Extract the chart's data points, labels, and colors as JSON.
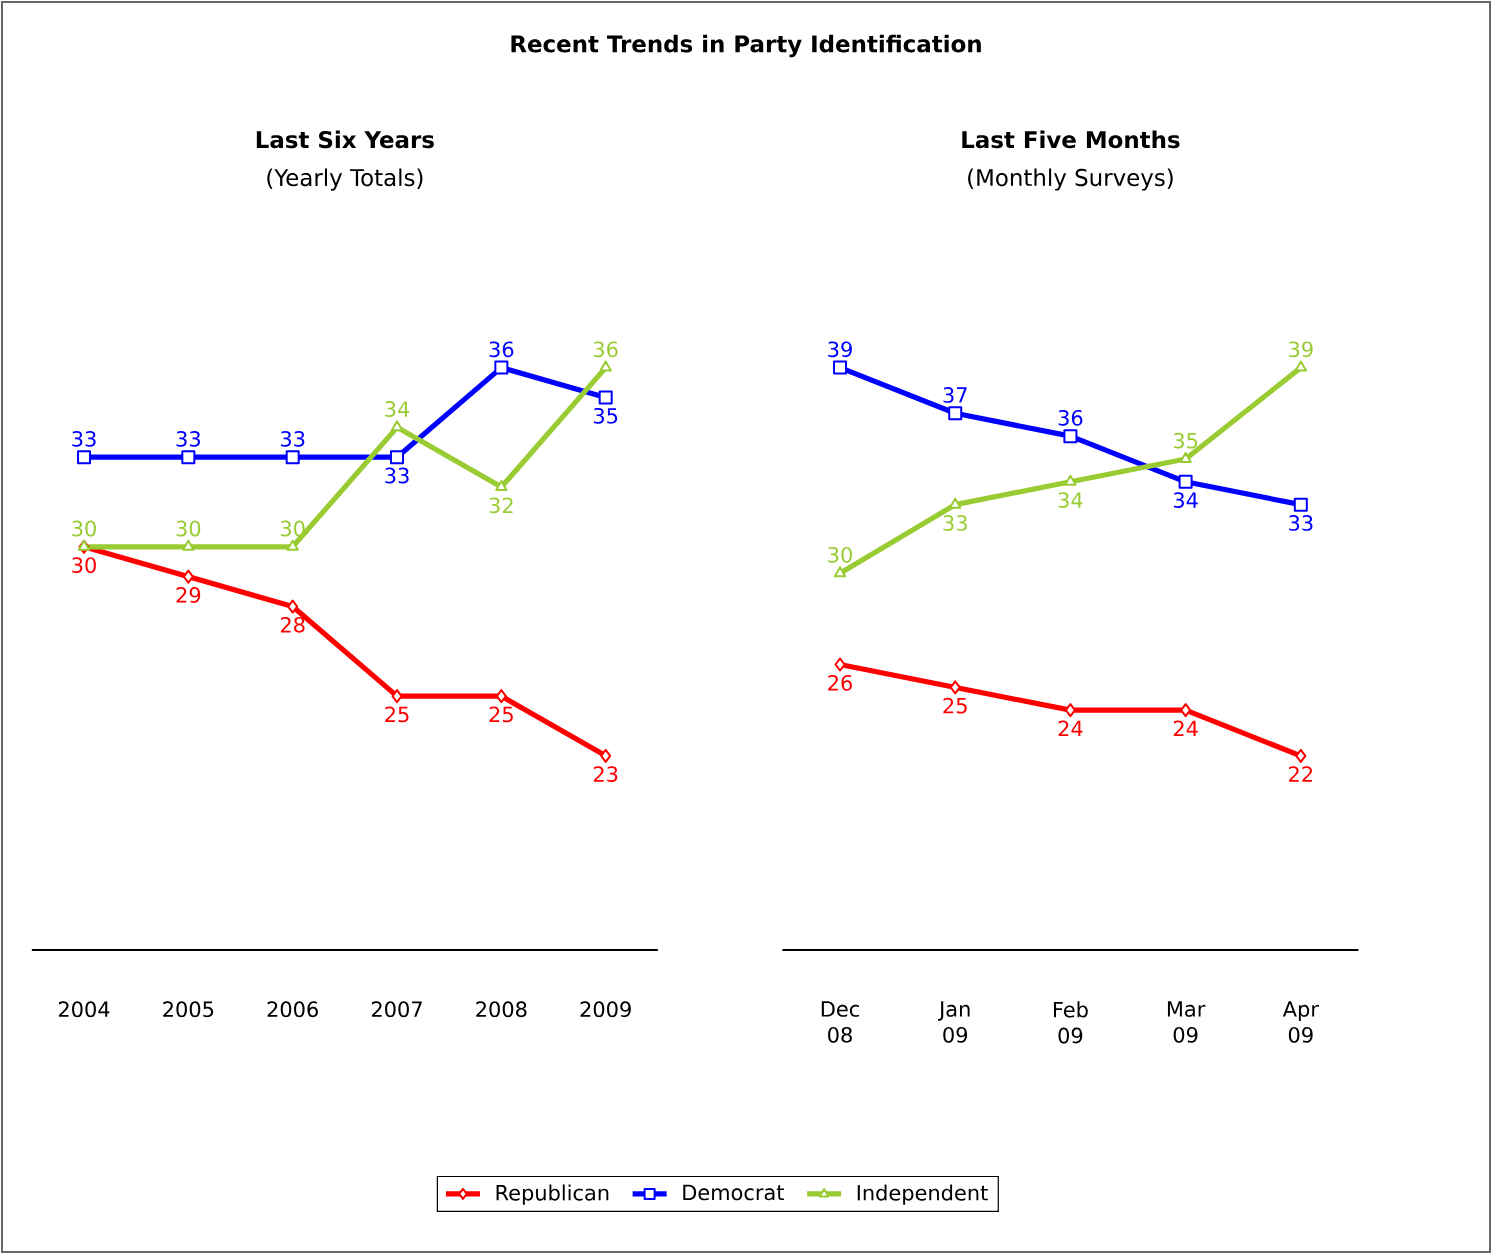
{
  "chart_data": [
    {
      "type": "line",
      "title": "Last Six Years",
      "subtitle": "(Yearly Totals)",
      "annotations": [
        "Recent Trends in Party Identification"
      ],
      "categories": [
        "2004",
        "2005",
        "2006",
        "2007",
        "2008",
        "2009"
      ],
      "data_labels": true,
      "legend": "bottom",
      "grid": false,
      "line_style": "solid",
      "series": [
        {
          "name": "Republican",
          "color": "#ff0000",
          "marker": "diamond",
          "values": [
            30,
            29,
            28,
            25,
            25,
            23
          ]
        },
        {
          "name": "Democrat",
          "color": "#0000ff",
          "marker": "square",
          "values": [
            33,
            33,
            33,
            33,
            36,
            35
          ]
        },
        {
          "name": "Independent",
          "color": "#99cc33",
          "marker": "triangle",
          "values": [
            30,
            30,
            30,
            34,
            32,
            36
          ]
        }
      ]
    },
    {
      "type": "line",
      "title": "Last Five Months",
      "subtitle": "(Monthly Surveys)",
      "categories": [
        "Dec 08",
        "Jan 09",
        "Feb 09",
        "Mar 09",
        "Apr 09"
      ],
      "data_labels": true,
      "grid": false,
      "line_style": "solid",
      "series": [
        {
          "color": "#ff0000",
          "marker": "diamond",
          "values": [
            26,
            25,
            24,
            24,
            22
          ]
        },
        {
          "color": "#0000ff",
          "marker": "square",
          "values": [
            39,
            37,
            36,
            34,
            33
          ]
        },
        {
          "color": "#99cc33",
          "marker": "triangle",
          "values": [
            30,
            33,
            34,
            35,
            39
          ]
        }
      ]
    }
  ]
}
